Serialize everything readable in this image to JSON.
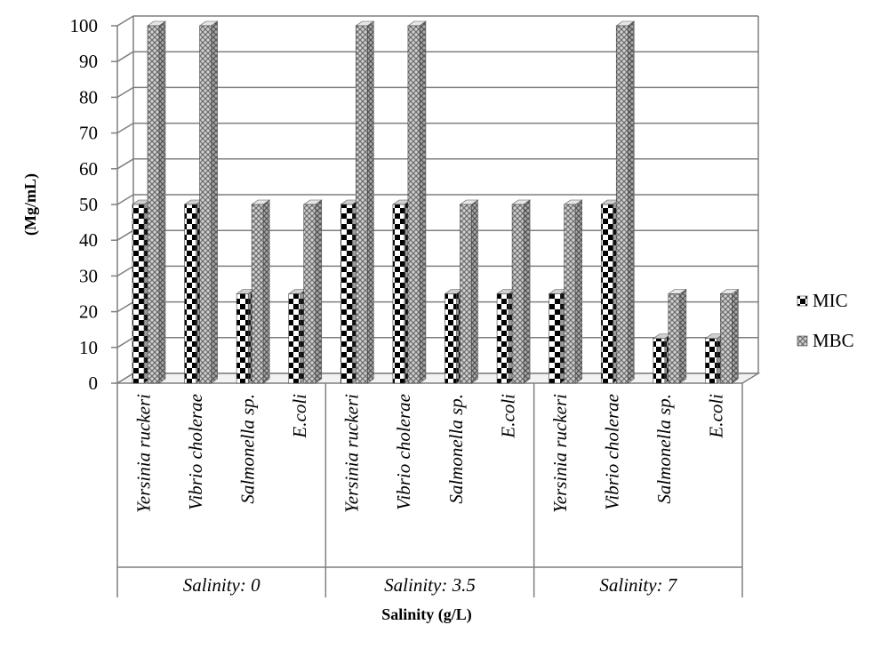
{
  "chart_data": {
    "type": "bar",
    "xlabel": "Salinity (g/L)",
    "ylabel": "(Mg/mL)",
    "ylim": [
      0,
      100
    ],
    "yticks": [
      "0",
      "10",
      "20",
      "30",
      "40",
      "50",
      "60",
      "70",
      "80",
      "90",
      "100"
    ],
    "grid": true,
    "legend_position": "right",
    "groups": [
      {
        "label": "Salinity: 0",
        "categories": [
          "Yersinia ruckeri",
          "Vibrio cholerae",
          "Salmonella sp.",
          "E.coli"
        ]
      },
      {
        "label": "Salinity: 3.5",
        "categories": [
          "Yersinia ruckeri",
          "Vibrio cholerae",
          "Salmonella sp.",
          "E.coli"
        ]
      },
      {
        "label": "Salinity: 7",
        "categories": [
          "Yersinia ruckeri",
          "Vibrio cholerae",
          "Salmonella sp.",
          "E.coli"
        ]
      }
    ],
    "series": [
      {
        "name": "MIC",
        "pattern": "checker",
        "values": [
          50,
          50,
          25,
          25,
          50,
          50,
          25,
          25,
          25,
          50,
          12.5,
          12.5
        ]
      },
      {
        "name": "MBC",
        "pattern": "mesh",
        "values": [
          100,
          100,
          50,
          50,
          100,
          100,
          50,
          50,
          50,
          100,
          25,
          25
        ]
      }
    ]
  }
}
